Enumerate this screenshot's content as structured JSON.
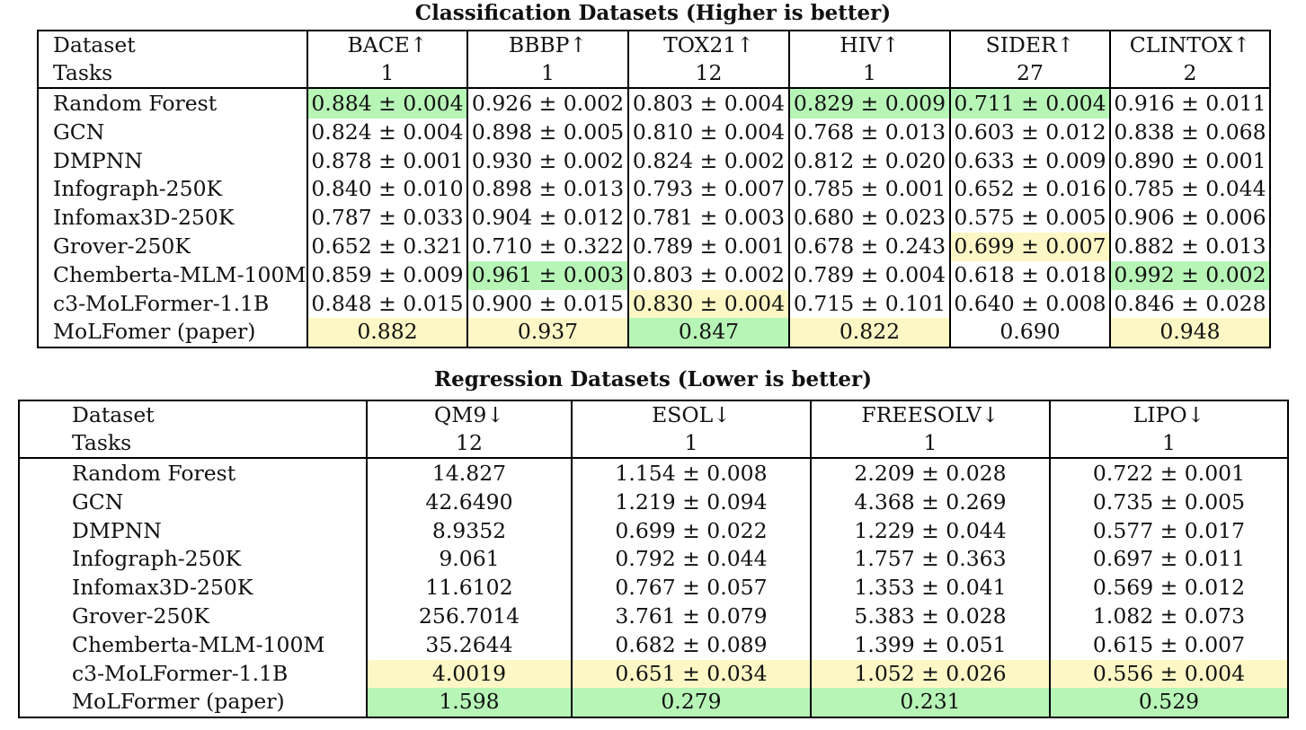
{
  "classification": {
    "caption": "Classification Datasets (Higher is better)",
    "columns": [
      {
        "dataset": "BACE↑",
        "tasks": "1"
      },
      {
        "dataset": "BBBP↑",
        "tasks": "1"
      },
      {
        "dataset": "TOX21↑",
        "tasks": "12"
      },
      {
        "dataset": "HIV↑",
        "tasks": "1"
      },
      {
        "dataset": "SIDER↑",
        "tasks": "27"
      },
      {
        "dataset": "CLINTOX↑",
        "tasks": "2"
      }
    ],
    "header_labels": {
      "dataset": "Dataset",
      "tasks": "Tasks"
    },
    "rows": [
      {
        "model": "Random Forest",
        "cells": [
          "0.884 ± 0.004",
          "0.926 ± 0.002",
          "0.803 ± 0.004",
          "0.829 ± 0.009",
          "0.711 ± 0.004",
          "0.916 ± 0.011"
        ]
      },
      {
        "model": "GCN",
        "cells": [
          "0.824 ± 0.004",
          "0.898 ± 0.005",
          "0.810 ± 0.004",
          "0.768 ± 0.013",
          "0.603 ± 0.012",
          "0.838 ± 0.068"
        ]
      },
      {
        "model": "DMPNN",
        "cells": [
          "0.878 ± 0.001",
          "0.930 ± 0.002",
          "0.824 ± 0.002",
          "0.812 ± 0.020",
          "0.633 ± 0.009",
          "0.890 ± 0.001"
        ]
      },
      {
        "model": "Infograph-250K",
        "cells": [
          "0.840 ± 0.010",
          "0.898 ± 0.013",
          "0.793 ± 0.007",
          "0.785 ± 0.001",
          "0.652 ± 0.016",
          "0.785 ± 0.044"
        ]
      },
      {
        "model": "Infomax3D-250K",
        "cells": [
          "0.787 ± 0.033",
          "0.904 ± 0.012",
          "0.781 ± 0.003",
          "0.680 ± 0.023",
          "0.575 ± 0.005",
          "0.906 ± 0.006"
        ]
      },
      {
        "model": "Grover-250K",
        "cells": [
          "0.652 ± 0.321",
          "0.710 ± 0.322",
          "0.789 ± 0.001",
          "0.678 ± 0.243",
          "0.699 ± 0.007",
          "0.882 ± 0.013"
        ]
      },
      {
        "model": "Chemberta-MLM-100M",
        "cells": [
          "0.859 ± 0.009",
          "0.961 ± 0.003",
          "0.803 ± 0.002",
          "0.789 ± 0.004",
          "0.618 ± 0.018",
          "0.992 ± 0.002"
        ]
      },
      {
        "model": "c3-MoLFormer-1.1B",
        "cells": [
          "0.848 ± 0.015",
          "0.900 ± 0.015",
          "0.830 ± 0.004",
          "0.715 ± 0.101",
          "0.640 ± 0.008",
          "0.846 ± 0.028"
        ]
      },
      {
        "model": "MoLFomer (paper)",
        "cells": [
          "0.882",
          "0.937",
          "0.847",
          "0.822",
          "0.690",
          "0.948"
        ]
      }
    ],
    "highlights": {
      "green": [
        [
          0,
          0
        ],
        [
          0,
          3
        ],
        [
          0,
          4
        ],
        [
          6,
          1
        ],
        [
          6,
          5
        ],
        [
          8,
          2
        ]
      ],
      "yellow": [
        [
          5,
          4
        ],
        [
          7,
          2
        ],
        [
          8,
          0
        ],
        [
          8,
          1
        ],
        [
          8,
          3
        ],
        [
          8,
          5
        ]
      ]
    }
  },
  "regression": {
    "caption": "Regression Datasets (Lower is better)",
    "columns": [
      {
        "dataset": "QM9↓",
        "tasks": "12"
      },
      {
        "dataset": "ESOL↓",
        "tasks": "1"
      },
      {
        "dataset": "FREESOLV↓",
        "tasks": "1"
      },
      {
        "dataset": "LIPO↓",
        "tasks": "1"
      }
    ],
    "header_labels": {
      "dataset": "Dataset",
      "tasks": "Tasks"
    },
    "rows": [
      {
        "model": "Random Forest",
        "cells": [
          "14.827",
          "1.154 ± 0.008",
          "2.209 ± 0.028",
          "0.722 ± 0.001"
        ]
      },
      {
        "model": "GCN",
        "cells": [
          "42.6490",
          "1.219 ± 0.094",
          "4.368 ± 0.269",
          "0.735 ± 0.005"
        ]
      },
      {
        "model": "DMPNN",
        "cells": [
          "8.9352",
          "0.699 ± 0.022",
          "1.229 ± 0.044",
          "0.577 ± 0.017"
        ]
      },
      {
        "model": "Infograph-250K",
        "cells": [
          "9.061",
          "0.792 ± 0.044",
          "1.757 ± 0.363",
          "0.697 ± 0.011"
        ]
      },
      {
        "model": "Infomax3D-250K",
        "cells": [
          "11.6102",
          "0.767 ± 0.057",
          "1.353 ± 0.041",
          "0.569 ± 0.012"
        ]
      },
      {
        "model": "Grover-250K",
        "cells": [
          "256.7014",
          "3.761 ± 0.079",
          "5.383 ± 0.028",
          "1.082 ± 0.073"
        ]
      },
      {
        "model": "Chemberta-MLM-100M",
        "cells": [
          "35.2644",
          "0.682 ± 0.089",
          "1.399 ± 0.051",
          "0.615 ± 0.007"
        ]
      },
      {
        "model": "c3-MoLFormer-1.1B",
        "cells": [
          "4.0019",
          "0.651 ± 0.034",
          "1.052 ± 0.026",
          "0.556 ± 0.004"
        ]
      },
      {
        "model": "MoLFormer (paper)",
        "cells": [
          "1.598",
          "0.279",
          "0.231",
          "0.529"
        ]
      }
    ],
    "highlights": {
      "green": [
        [
          8,
          0
        ],
        [
          8,
          1
        ],
        [
          8,
          2
        ],
        [
          8,
          3
        ]
      ],
      "yellow": [
        [
          7,
          0
        ],
        [
          7,
          1
        ],
        [
          7,
          2
        ],
        [
          7,
          3
        ]
      ]
    }
  },
  "colors": {
    "green": "#b7f5b7",
    "yellow": "#fdf7c5",
    "border": "#000000"
  }
}
